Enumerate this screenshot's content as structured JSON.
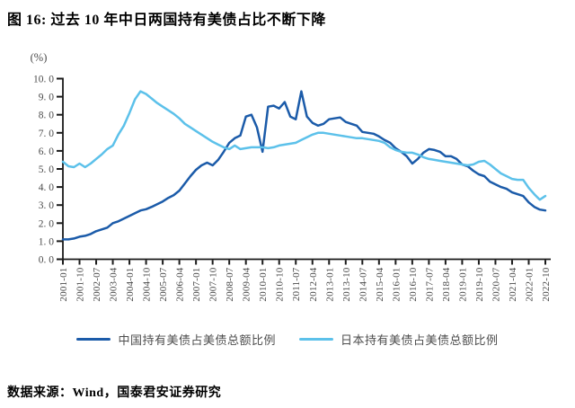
{
  "header": {
    "title": "图 16:  过去 10 年中日两国持有美债占比不断下降"
  },
  "footer": {
    "source": "数据来源：Wind，国泰君安证券研究"
  },
  "chart_data": {
    "type": "line",
    "title": "过去10年中日两国持有美债占比不断下降",
    "unit_label": "(%)",
    "ylabel": "(%)",
    "xlabel": "",
    "ylim": [
      0,
      10
    ],
    "y_tick_step": 1.0,
    "y_tick_labels": [
      "0. 0",
      "1. 0",
      "2. 0",
      "3. 0",
      "4. 0",
      "5. 0",
      "6. 0",
      "7. 0",
      "8. 0",
      "9. 0",
      "10. 0"
    ],
    "grid": false,
    "legend_position": "bottom",
    "x_start": "2001-01",
    "x_end": "2022-10",
    "point_step_months": 3,
    "tick_step_months": 9,
    "x_tick_labels": [
      "2001-01",
      "2001-10",
      "2002-07",
      "2003-04",
      "2004-01",
      "2004-10",
      "2005-07",
      "2006-04",
      "2007-01",
      "2007-10",
      "2008-07",
      "2009-04",
      "2010-01",
      "2010-10",
      "2011-07",
      "2012-04",
      "2013-01",
      "2013-10",
      "2014-07",
      "2015-04",
      "2016-01",
      "2016-10",
      "2017-07",
      "2018-04",
      "2019-01",
      "2019-10",
      "2020-07",
      "2021-04",
      "2022-01",
      "2022-10"
    ],
    "series": [
      {
        "name": "中国持有美债占美债总额比例",
        "color": "#1b5ba9",
        "values": [
          1.1,
          1.1,
          1.15,
          1.25,
          1.3,
          1.4,
          1.55,
          1.65,
          1.75,
          2.0,
          2.1,
          2.25,
          2.4,
          2.55,
          2.7,
          2.77,
          2.9,
          3.05,
          3.2,
          3.4,
          3.55,
          3.8,
          4.2,
          4.6,
          4.95,
          5.2,
          5.35,
          5.2,
          5.5,
          5.95,
          6.45,
          6.7,
          6.85,
          7.9,
          8.0,
          7.3,
          5.95,
          8.45,
          8.5,
          8.35,
          8.7,
          7.9,
          7.75,
          9.3,
          7.9,
          7.55,
          7.4,
          7.5,
          7.75,
          7.8,
          7.85,
          7.6,
          7.5,
          7.4,
          7.05,
          7.0,
          6.95,
          6.8,
          6.6,
          6.45,
          6.15,
          5.95,
          5.7,
          5.3,
          5.55,
          5.9,
          6.1,
          6.05,
          5.95,
          5.7,
          5.7,
          5.55,
          5.25,
          5.15,
          4.9,
          4.7,
          4.6,
          4.3,
          4.15,
          4.0,
          3.9,
          3.7,
          3.6,
          3.5,
          3.15,
          2.9,
          2.75,
          2.7
        ]
      },
      {
        "name": "日本持有美债占美债总额比例",
        "color": "#5cc1ea",
        "values": [
          5.4,
          5.15,
          5.1,
          5.3,
          5.1,
          5.3,
          5.55,
          5.8,
          6.1,
          6.3,
          6.9,
          7.4,
          8.1,
          8.85,
          9.3,
          9.15,
          8.9,
          8.65,
          8.45,
          8.25,
          8.05,
          7.8,
          7.5,
          7.3,
          7.1,
          6.9,
          6.7,
          6.5,
          6.35,
          6.2,
          6.1,
          6.3,
          6.1,
          6.15,
          6.2,
          6.2,
          6.2,
          6.15,
          6.2,
          6.3,
          6.35,
          6.4,
          6.45,
          6.6,
          6.75,
          6.9,
          7.0,
          7.0,
          6.95,
          6.9,
          6.85,
          6.8,
          6.75,
          6.7,
          6.7,
          6.65,
          6.6,
          6.55,
          6.45,
          6.2,
          6.05,
          5.95,
          5.9,
          5.9,
          5.8,
          5.65,
          5.55,
          5.5,
          5.45,
          5.4,
          5.35,
          5.3,
          5.25,
          5.2,
          5.25,
          5.4,
          5.45,
          5.25,
          5.0,
          4.75,
          4.6,
          4.45,
          4.4,
          4.4,
          3.95,
          3.6,
          3.3,
          3.5
        ]
      }
    ]
  }
}
